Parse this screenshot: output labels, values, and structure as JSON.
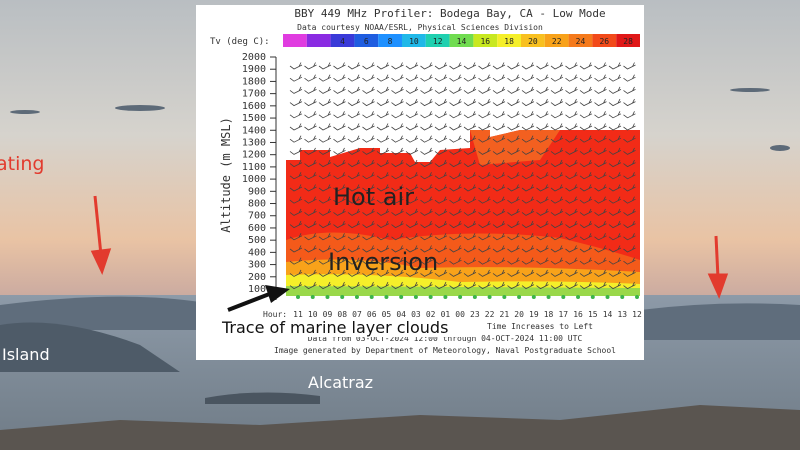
{
  "photo_labels": {
    "left_top": "ating",
    "left_bottom": "Island",
    "center": "Alcatraz"
  },
  "profiler": {
    "title": "BBY 449 MHz Profiler:  Bodega Bay, CA    - Low Mode",
    "credit": "Data courtesy NOAA/ESRL, Physical Sciences Division",
    "colorbar_label": "Tv (deg C):",
    "colorbar_ticks": [
      "4",
      "6",
      "8",
      "10",
      "12",
      "14",
      "16",
      "18",
      "20",
      "22",
      "24",
      "26",
      "28"
    ],
    "y_axis_label": "Altitude (m MSL)",
    "altitude_ticks": [
      "100",
      "200",
      "300",
      "400",
      "500",
      "600",
      "700",
      "800",
      "900",
      "1000",
      "1100",
      "1200",
      "1300",
      "1400",
      "1500",
      "1600",
      "1700",
      "1800",
      "1900",
      "2000"
    ],
    "hour_label": "Hour:",
    "hours": [
      "11",
      "10",
      "09",
      "08",
      "07",
      "06",
      "05",
      "04",
      "03",
      "02",
      "01",
      "00",
      "23",
      "22",
      "21",
      "20",
      "19",
      "18",
      "17",
      "16",
      "15",
      "14",
      "13",
      "12"
    ],
    "time_note": "Time Increases to Left",
    "date_line": "Data from 03-OCT-2024 12:00 through 04-OCT-2024 11:00 UTC",
    "generated": "Image generated by Department of Meteorology, Naval Postgraduate School"
  },
  "annotations": {
    "hot_air": "Hot air",
    "inversion": "Inversion",
    "marine": "Trace of marine layer clouds"
  }
}
